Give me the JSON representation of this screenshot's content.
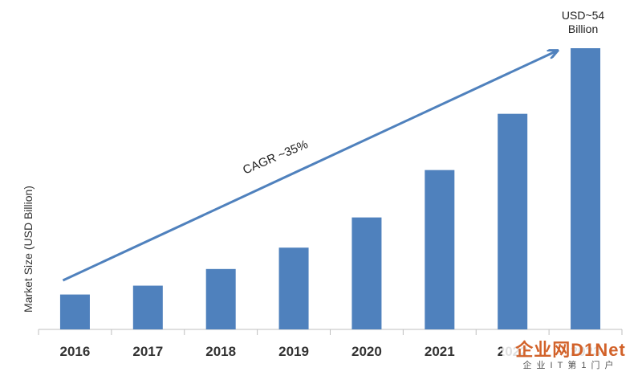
{
  "chart_data": {
    "type": "bar",
    "categories": [
      "2016",
      "2017",
      "2018",
      "2019",
      "2020",
      "2021",
      "2022",
      "2023"
    ],
    "values": [
      6.7,
      8.4,
      11.6,
      15.7,
      21.5,
      30.6,
      41.4,
      54
    ],
    "ylabel": "Market Size (USD Billion)",
    "ylim": [
      0,
      60
    ],
    "grid": false,
    "legend": "none",
    "bar_color": "#4f81bd",
    "trend_color": "#4f81bd",
    "annotations": {
      "trend_label": "CAGR ~35%",
      "last_value_label": [
        "USD~54",
        "Billion"
      ]
    }
  },
  "watermark": {
    "main": "企业网D1Net",
    "sub": "企业IT第1门户"
  }
}
